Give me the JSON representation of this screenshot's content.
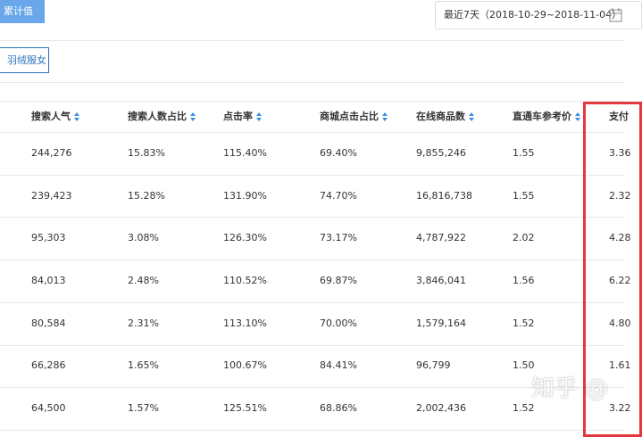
{
  "toolbar": {
    "mode_button": "累计值",
    "date_range": "最近7天（2018-10-29~2018-11-04）"
  },
  "filter": {
    "tag": "羽绒服女"
  },
  "table": {
    "headers": [
      "搜索人气",
      "搜索人数占比",
      "点击率",
      "商城点击占比",
      "在线商品数",
      "直通车参考价",
      "支付"
    ],
    "rows": [
      [
        "244,276",
        "15.83%",
        "115.40%",
        "69.40%",
        "9,855,246",
        "1.55",
        "3.36"
      ],
      [
        "239,423",
        "15.28%",
        "131.90%",
        "74.70%",
        "16,816,738",
        "1.55",
        "2.32"
      ],
      [
        "95,303",
        "3.08%",
        "126.30%",
        "73.17%",
        "4,787,922",
        "2.02",
        "4.28"
      ],
      [
        "84,013",
        "2.48%",
        "110.52%",
        "69.87%",
        "3,846,041",
        "1.56",
        "6.22"
      ],
      [
        "80,584",
        "2.31%",
        "113.10%",
        "70.00%",
        "1,579,164",
        "1.52",
        "4.80"
      ],
      [
        "66,286",
        "1.65%",
        "100.67%",
        "84.41%",
        "96,799",
        "1.50",
        "1.61"
      ],
      [
        "64,500",
        "1.57%",
        "125.51%",
        "68.86%",
        "2,002,436",
        "1.52",
        "3.22"
      ]
    ]
  },
  "watermark": "知乎 @"
}
